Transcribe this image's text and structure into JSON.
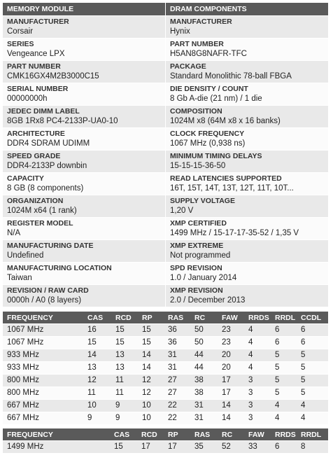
{
  "module": {
    "headers": [
      "MEMORY MODULE",
      "DRAM COMPONENTS"
    ],
    "rows": [
      [
        {
          "label": "MANUFACTURER",
          "value": "Corsair"
        },
        {
          "label": "MANUFACTURER",
          "value": "Hynix"
        }
      ],
      [
        {
          "label": "SERIES",
          "value": "Vengeance LPX"
        },
        {
          "label": "PART NUMBER",
          "value": "H5AN8G8NAFR-TFC"
        }
      ],
      [
        {
          "label": "PART NUMBER",
          "value": "CMK16GX4M2B3000C15"
        },
        {
          "label": "PACKAGE",
          "value": "Standard Monolithic 78-ball FBGA"
        }
      ],
      [
        {
          "label": "SERIAL NUMBER",
          "value": "00000000h"
        },
        {
          "label": "DIE DENSITY / COUNT",
          "value": "8 Gb A-die (21 nm) / 1 die"
        }
      ],
      [
        {
          "label": "JEDEC DIMM LABEL",
          "value": "8GB 1Rx8 PC4-2133P-UA0-10"
        },
        {
          "label": "COMPOSITION",
          "value": "1024M x8 (64M x8 x 16 banks)"
        }
      ],
      [
        {
          "label": "ARCHITECTURE",
          "value": "DDR4 SDRAM UDIMM"
        },
        {
          "label": "CLOCK FREQUENCY",
          "value": "1067 MHz (0,938 ns)"
        }
      ],
      [
        {
          "label": "SPEED GRADE",
          "value": "DDR4-2133P downbin"
        },
        {
          "label": "MINIMUM TIMING DELAYS",
          "value": "15-15-15-36-50"
        }
      ],
      [
        {
          "label": "CAPACITY",
          "value": "8 GB (8 components)"
        },
        {
          "label": "READ LATENCIES SUPPORTED",
          "value": "16T, 15T, 14T, 13T, 12T, 11T, 10T..."
        }
      ],
      [
        {
          "label": "ORGANIZATION",
          "value": "1024M x64 (1 rank)"
        },
        {
          "label": "SUPPLY VOLTAGE",
          "value": "1,20 V"
        }
      ],
      [
        {
          "label": "REGISTER MODEL",
          "value": "N/A"
        },
        {
          "label": "XMP CERTIFIED",
          "value": "1499 MHz / 15-17-17-35-52 / 1,35 V"
        }
      ],
      [
        {
          "label": "MANUFACTURING DATE",
          "value": "Undefined"
        },
        {
          "label": "XMP EXTREME",
          "value": "Not programmed"
        }
      ],
      [
        {
          "label": "MANUFACTURING LOCATION",
          "value": "Taiwan"
        },
        {
          "label": "SPD REVISION",
          "value": "1.0 / January 2014"
        }
      ],
      [
        {
          "label": "REVISION / RAW CARD",
          "value": "0000h / A0 (8 layers)"
        },
        {
          "label": "XMP REVISION",
          "value": "2.0 / December 2013"
        }
      ]
    ]
  },
  "jedec_timings": {
    "columns": [
      "FREQUENCY",
      "CAS",
      "RCD",
      "RP",
      "RAS",
      "RC",
      "FAW",
      "RRDS",
      "RRDL",
      "CCDL"
    ],
    "rows": [
      [
        "1067 MHz",
        16,
        15,
        15,
        36,
        50,
        23,
        4,
        6,
        6
      ],
      [
        "1067 MHz",
        15,
        15,
        15,
        36,
        50,
        23,
        4,
        6,
        6
      ],
      [
        "933 MHz",
        14,
        13,
        14,
        31,
        44,
        20,
        4,
        5,
        5
      ],
      [
        "933 MHz",
        13,
        13,
        14,
        31,
        44,
        20,
        4,
        5,
        5
      ],
      [
        "800 MHz",
        12,
        11,
        12,
        27,
        38,
        17,
        3,
        5,
        5
      ],
      [
        "800 MHz",
        11,
        11,
        12,
        27,
        38,
        17,
        3,
        5,
        5
      ],
      [
        "667 MHz",
        10,
        9,
        10,
        22,
        31,
        14,
        3,
        4,
        4
      ],
      [
        "667 MHz",
        9,
        9,
        10,
        22,
        31,
        14,
        3,
        4,
        4
      ]
    ]
  },
  "xmp_timings": {
    "columns": [
      "FREQUENCY",
      "CAS",
      "RCD",
      "RP",
      "RAS",
      "RC",
      "FAW",
      "RRDS",
      "RRDL"
    ],
    "rows": [
      [
        "1499 MHz",
        15,
        17,
        17,
        35,
        52,
        33,
        6,
        8
      ]
    ]
  }
}
